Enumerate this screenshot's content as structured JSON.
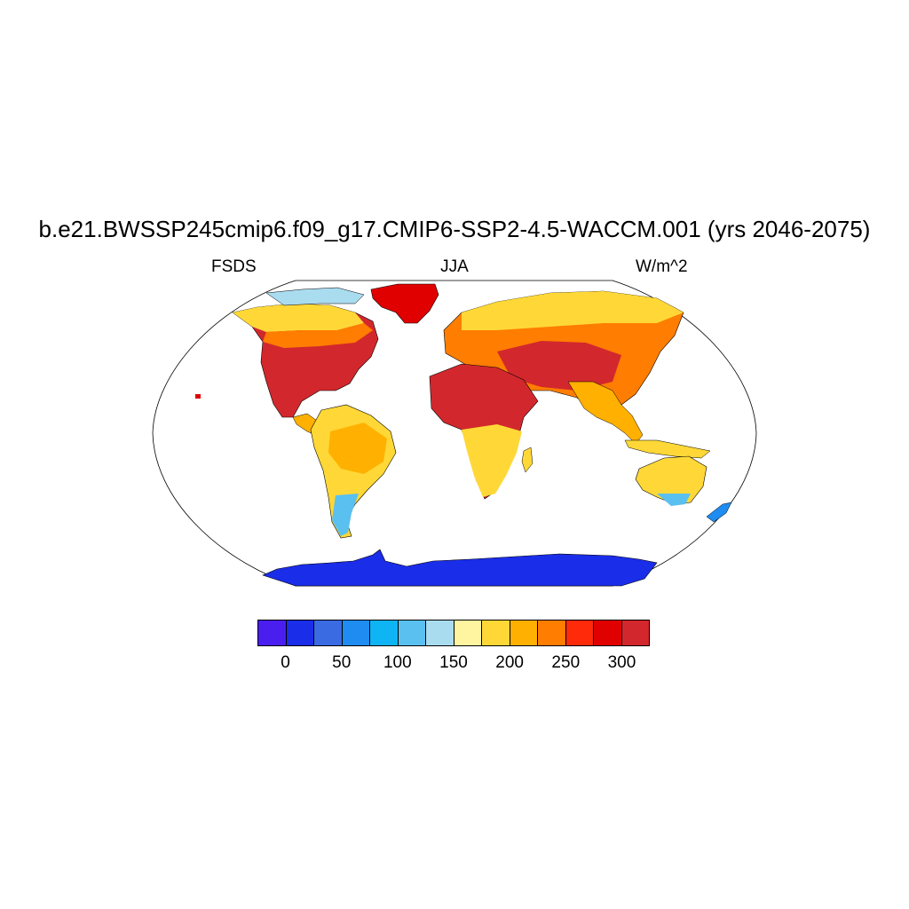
{
  "title": "b.e21.BWSSP245cmip6.f09_g17.CMIP6-SSP2-4.5-WACCM.001 (yrs 2046-2075)",
  "subtitle_left": "FSDS",
  "subtitle_center": "JJA",
  "subtitle_right": "W/m^2",
  "map": {
    "projection": "robinson",
    "variable": "FSDS",
    "season": "JJA",
    "units": "W/m^2"
  },
  "colorbar": {
    "colors": [
      "#4b1ef0",
      "#1a2de8",
      "#3b6be2",
      "#1e8cf0",
      "#0fb4f5",
      "#5ac0f0",
      "#aadcf0",
      "#fff5a0",
      "#ffd837",
      "#ffb000",
      "#ff7d00",
      "#ff2a0a",
      "#e00000",
      "#d2282d"
    ],
    "labels": [
      "0",
      "50",
      "100",
      "150",
      "200",
      "250",
      "300"
    ]
  }
}
